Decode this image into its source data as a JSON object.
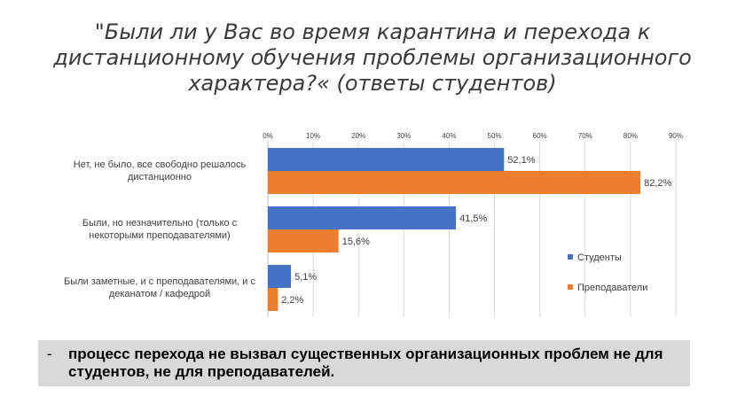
{
  "title": {
    "line1": "\"Были ли у Вас во время карантина и перехода к",
    "line2": "дистанционному обучения проблемы организационного",
    "line3": "характера?« (ответы студентов)"
  },
  "chart_data": {
    "type": "bar",
    "orientation": "horizontal",
    "categories": [
      [
        "Нет, не было, все свободно решалось",
        "дистанционно"
      ],
      [
        "Были, но незначительно (только с",
        "некоторыми преподавателями)"
      ],
      [
        "Были заметные, и с преподавателями, и с",
        "деканатом / кафедрой"
      ]
    ],
    "series": [
      {
        "name": "Студенты",
        "color": "#4472c4",
        "values": [
          52.1,
          41.5,
          5.1
        ],
        "labels": [
          "52,1%",
          "41,5%",
          "5,1%"
        ]
      },
      {
        "name": "Преподаватели",
        "color": "#ed7d31",
        "values": [
          82.2,
          15.6,
          2.2
        ],
        "labels": [
          "82,2%",
          "15,6%",
          "2,2%"
        ]
      }
    ],
    "xlim": [
      0,
      90
    ],
    "xticks": [
      "0%",
      "10%",
      "20%",
      "30%",
      "40%",
      "50%",
      "60%",
      "70%",
      "80%",
      "90%"
    ],
    "grid": true,
    "legend_position": "right"
  },
  "conclusion": {
    "dash": "-",
    "text": "процесс перехода не вызвал существенных организационных проблем не для студентов, не для преподавателей."
  }
}
